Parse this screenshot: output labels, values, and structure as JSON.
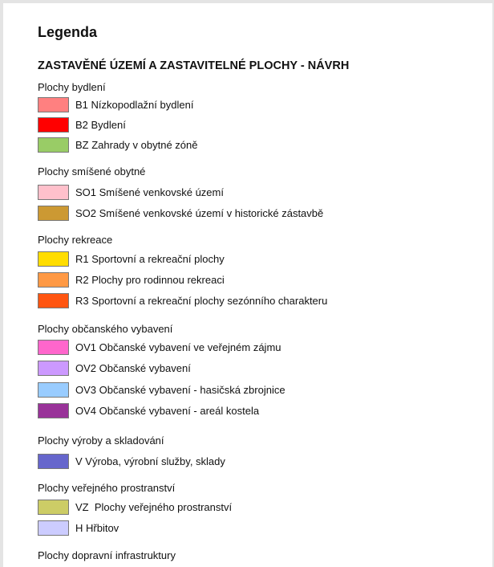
{
  "title": "Legenda",
  "section": "ZASTAVĚNÉ ÚZEMÍ A ZASTAVITELNÉ PLOCHY - NÁVRH",
  "groups": [
    {
      "label": "Plochy bydlení",
      "items": [
        {
          "label": "B1 Nízkopodlažní bydlení",
          "color": "#ff8080"
        },
        {
          "label": "B2 Bydlení",
          "color": "#ff0000"
        },
        {
          "label": "BZ Zahrady v obytné zóně",
          "color": "#99cc66"
        }
      ]
    },
    {
      "label": "Plochy smíšené obytné",
      "items": [
        {
          "label": "SO1 Smíšené venkovské území",
          "color": "#ffc0cb"
        },
        {
          "label": "SO2 Smíšené venkovské území v historické zástavbě",
          "color": "#cc9933"
        }
      ]
    },
    {
      "label": "Plochy rekreace",
      "items": [
        {
          "label": "R1 Sportovní a rekreační plochy",
          "color": "#ffdd00"
        },
        {
          "label": "R2 Plochy pro rodinnou rekreaci",
          "color": "#ff9944"
        },
        {
          "label": "R3 Sportovní a rekreační plochy sezónního charakteru",
          "color": "#ff5511"
        }
      ]
    },
    {
      "label": "Plochy občanského vybavení",
      "items": [
        {
          "label": "OV1 Občanské vybavení ve veřejném zájmu",
          "color": "#ff66cc"
        },
        {
          "label": "OV2 Občanské vybavení",
          "color": "#cc99ff"
        },
        {
          "label": "OV3 Občanské vybavení - hasičská zbrojnice",
          "color": "#99ccff"
        },
        {
          "label": "OV4 Občanské vybavení - areál kostela",
          "color": "#993399"
        }
      ]
    },
    {
      "label": "Plochy výroby a skladování",
      "items": [
        {
          "label": "V Výroba, výrobní služby, sklady",
          "color": "#6666cc"
        }
      ]
    },
    {
      "label": "Plochy veřejného prostranství",
      "items": [
        {
          "label": "VZ  Plochy veřejného prostranství",
          "color": "#cccc66"
        },
        {
          "label": "H Hřbitov",
          "color": "#ccccff"
        }
      ]
    },
    {
      "label": "Plochy dopravní infrastruktury",
      "items": []
    }
  ]
}
